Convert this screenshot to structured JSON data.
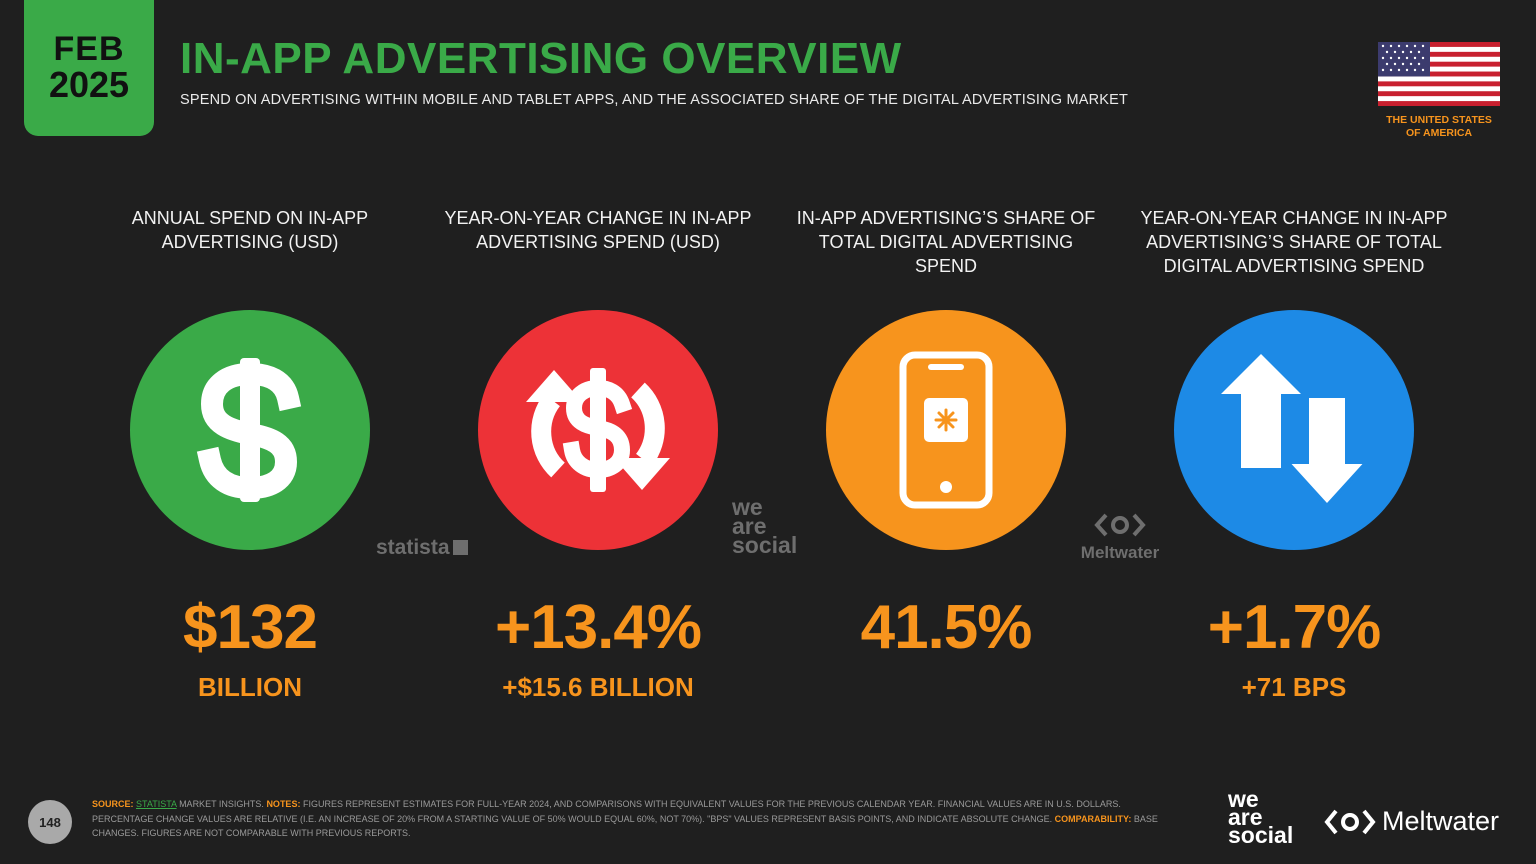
{
  "header": {
    "date_month": "FEB",
    "date_year": "2025",
    "title": "IN-APP ADVERTISING OVERVIEW",
    "subtitle": "SPEND ON ADVERTISING WITHIN MOBILE AND TABLET APPS, AND THE ASSOCIATED SHARE OF THE DIGITAL ADVERTISING MARKET",
    "country_line1": "THE UNITED STATES",
    "country_line2": "OF AMERICA"
  },
  "colors": {
    "green": "#3aaa48",
    "red": "#ed3237",
    "orange": "#f7941d",
    "blue": "#1d8ae6",
    "background": "#1f1f1f"
  },
  "kpis": [
    {
      "label": "ANNUAL SPEND ON IN-APP ADVERTISING (USD)",
      "value": "$132",
      "sub": "BILLION",
      "icon": "dollar-icon",
      "color": "#3aaa48"
    },
    {
      "label": "YEAR-ON-YEAR CHANGE IN IN-APP ADVERTISING SPEND (USD)",
      "value": "+13.4%",
      "sub": "+$15.6 BILLION",
      "icon": "dollar-change-icon",
      "color": "#ed3237"
    },
    {
      "label": "IN-APP ADVERTISING’S SHARE OF TOTAL DIGITAL ADVERTISING SPEND",
      "value": "41.5%",
      "sub": "",
      "icon": "smartphone-app-icon",
      "color": "#f7941d"
    },
    {
      "label": "YEAR-ON-YEAR CHANGE IN IN-APP ADVERTISING’S SHARE OF TOTAL DIGITAL ADVERTISING SPEND",
      "value": "+1.7%",
      "sub": "+71 BPS",
      "icon": "up-down-arrows-icon",
      "color": "#1d8ae6"
    }
  ],
  "watermarks": {
    "statista": "statista",
    "we": "we",
    "are": "are",
    "social": "social",
    "meltwater": "Meltwater"
  },
  "footer": {
    "page_number": "148",
    "source_label": "SOURCE:",
    "source_name": "STATISTA",
    "source_rest": "MARKET INSIGHTS.",
    "notes_label": "NOTES:",
    "notes_text": "FIGURES REPRESENT ESTIMATES FOR FULL-YEAR 2024, AND COMPARISONS WITH EQUIVALENT VALUES FOR THE PREVIOUS CALENDAR YEAR. FINANCIAL VALUES ARE IN U.S. DOLLARS. PERCENTAGE CHANGE VALUES ARE RELATIVE (I.E. AN INCREASE OF 20% FROM A STARTING VALUE OF 50% WOULD EQUAL 60%, NOT 70%). \"BPS\" VALUES REPRESENT BASIS POINTS, AND INDICATE ABSOLUTE CHANGE.",
    "comparability_label": "COMPARABILITY:",
    "comparability_text": "BASE CHANGES. FIGURES ARE NOT COMPARABLE WITH PREVIOUS REPORTS.",
    "logo_we": "we",
    "logo_are": "are",
    "logo_social": "social",
    "logo_meltwater": "Meltwater"
  }
}
